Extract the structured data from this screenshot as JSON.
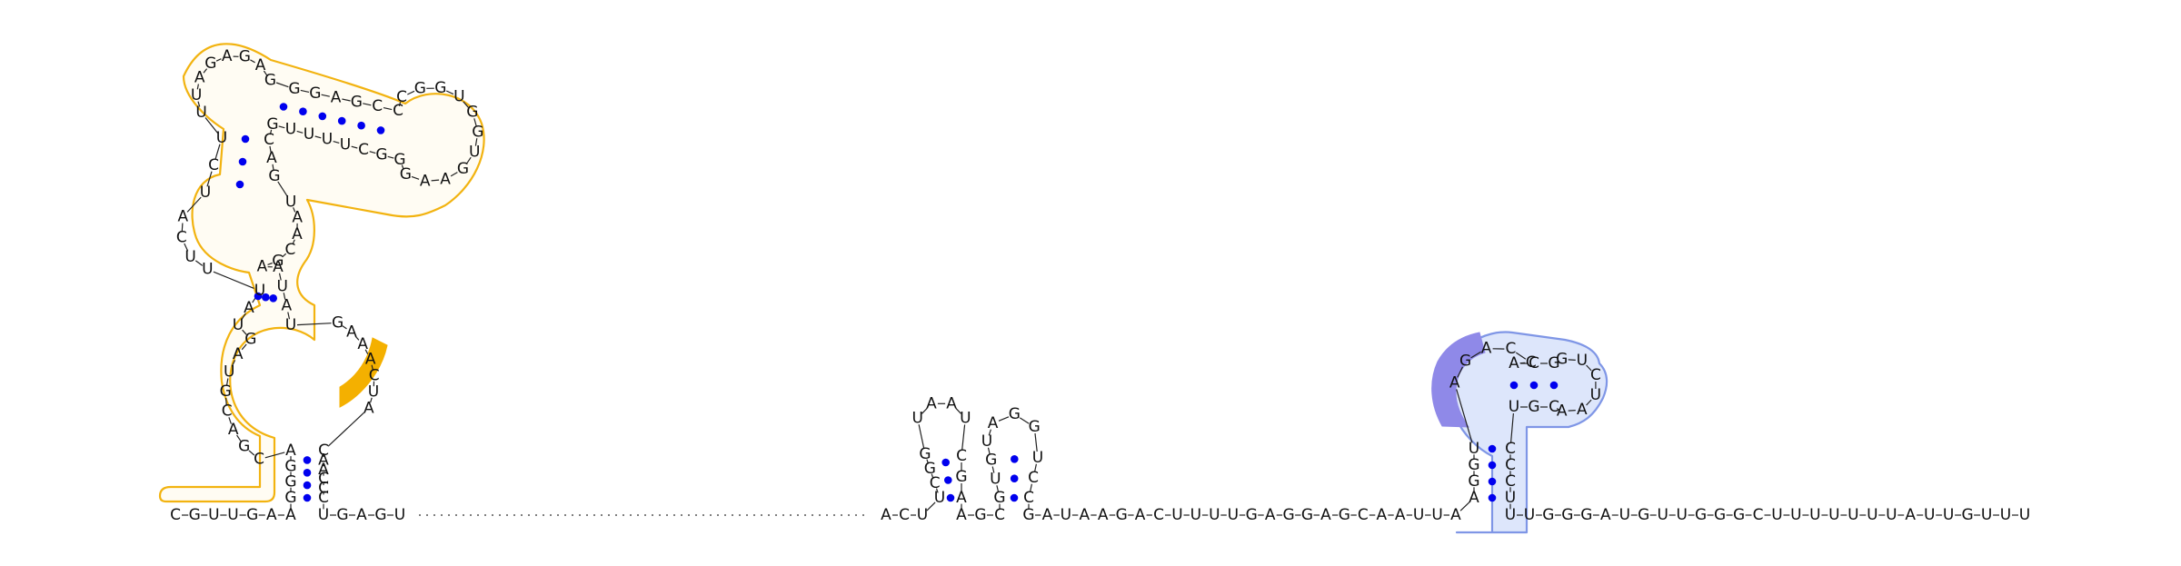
{
  "colors": {
    "nucleotide_text": "#111111",
    "pair_dot": "#0000ee",
    "domain_orange_outline": "#f2b310",
    "domain_orange_fill": "#fffcf3",
    "domain_orange_accent": "#f4b000",
    "domain_blue_outline": "#7f96e6",
    "domain_blue_fill": "#dde6fb",
    "domain_blue_accent": "#8f89e8"
  },
  "segments": {
    "left_5prime": "CGUUGAA",
    "left_stem_5": "GGGA",
    "left_5prime_tail": "CGACGUAG",
    "left_internal_a": "UAU",
    "left_internal_b": "UUCA",
    "left_stem_c": "UCU",
    "left_loop_a": "UUAGAGAG",
    "left_top_stem": "GGAGCC",
    "left_hairpin": "CGGUGGUGAAG",
    "left_top_stem_3": "GGCUUUUG",
    "left_stem_c3": "CAG",
    "left_internal_c": "UAACGA",
    "left_stem_b3": "AUAU",
    "left_loop_right": "GAAACUA",
    "left_stem_3": "CAACCC",
    "left_3prime": "UGAGU",
    "mid_linker": "ACU",
    "mid_hp1_5": "UCGG",
    "mid_hp1_loop": "UAAU",
    "mid_hp1_3": "CGA",
    "mid_link2": "AGC",
    "mid_hp2_5": "GUGU",
    "mid_hp2_loop": "AGG",
    "mid_hp2_3": "UCC",
    "right_linker": "GAUAAGACUUUUGAGGAGCAAUUA",
    "right_stem_5": "AGGU",
    "right_loop_5": "AGACC",
    "right_top_5": "ACG",
    "right_hairpin": "GUCUAA",
    "right_top_3": "CGU",
    "right_stem_3": "CCCU",
    "right_3prime": "UUGGGAUGUUGGGCUUUUUUUAUUGUUU"
  }
}
